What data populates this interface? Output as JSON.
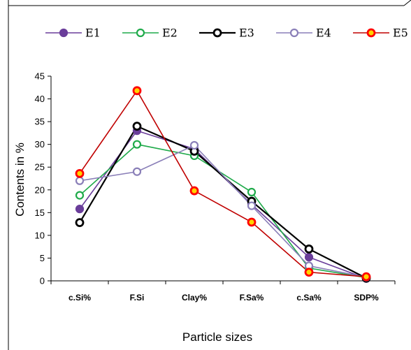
{
  "chart_data": {
    "type": "line",
    "title": "",
    "xlabel": "Particle sizes",
    "ylabel": "Contents in %",
    "categories": [
      "c.Si%",
      "F.Si",
      "Clay%",
      "F.Sa%",
      "c.Sa%",
      "SDP%"
    ],
    "ylim": [
      0,
      45
    ],
    "yticks": [
      0,
      5,
      10,
      15,
      20,
      25,
      30,
      35,
      40,
      45
    ],
    "grid": false,
    "legend_position": "top",
    "series": [
      {
        "name": "E1",
        "values": [
          15.8,
          33.0,
          29.0,
          16.8,
          5.2,
          0.5
        ],
        "color": "#6a3d9a",
        "marker_fill": "#6a3d9a",
        "marker_stroke": "#6a3d9a"
      },
      {
        "name": "E2",
        "values": [
          18.8,
          30.0,
          27.5,
          19.5,
          2.8,
          0.7
        ],
        "color": "#1faa4a",
        "marker_fill": "#ffffff",
        "marker_stroke": "#1faa4a"
      },
      {
        "name": "E3",
        "values": [
          12.8,
          34.0,
          28.5,
          17.5,
          7.0,
          0.6
        ],
        "color": "#000000",
        "marker_fill": "#ffffff",
        "marker_stroke": "#000000"
      },
      {
        "name": "E4",
        "values": [
          22.0,
          24.0,
          29.8,
          16.5,
          3.3,
          0.8
        ],
        "color": "#8a7fb8",
        "marker_fill": "#ffffff",
        "marker_stroke": "#8a7fb8"
      },
      {
        "name": "E5",
        "values": [
          23.6,
          41.8,
          19.8,
          12.9,
          1.9,
          0.9
        ],
        "color": "#c00000",
        "marker_fill": "#ffd200",
        "marker_stroke": "#ff0000"
      }
    ]
  }
}
